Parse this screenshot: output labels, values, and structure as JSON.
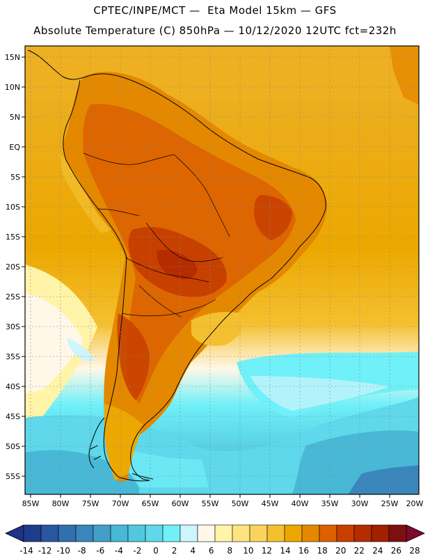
{
  "header": {
    "line1": "CPTEC/INPE/MCT —  Eta Model 15km — GFS",
    "line2": "Absolute Temperature (C) 850hPa — 10/12/2020 12UTC fct=232h"
  },
  "map": {
    "lat_labels": [
      "15N",
      "10N",
      "5N",
      "EQ",
      "5S",
      "10S",
      "15S",
      "20S",
      "25S",
      "30S",
      "35S",
      "40S",
      "45S",
      "50S",
      "55S"
    ],
    "lon_labels": [
      "85W",
      "80W",
      "75W",
      "70W",
      "65W",
      "60W",
      "55W",
      "50W",
      "45W",
      "40W",
      "35W",
      "30W",
      "25W",
      "20W"
    ]
  },
  "colorbar": {
    "labels": [
      "-14",
      "-12",
      "-10",
      "-8",
      "-6",
      "-4",
      "-2",
      "0",
      "2",
      "4",
      "6",
      "8",
      "10",
      "12",
      "14",
      "16",
      "18",
      "20",
      "22",
      "24",
      "26",
      "28"
    ],
    "colors": [
      "#1f3c8c",
      "#2a56a0",
      "#3170b0",
      "#3a86bc",
      "#42a0c8",
      "#48b8d6",
      "#52c8e0",
      "#5ed8ea",
      "#70f0f8",
      "#cef4fc",
      "#fff8e8",
      "#fff4a8",
      "#fce480",
      "#f8d45c",
      "#f4c030",
      "#eca800",
      "#e48800",
      "#dc6000",
      "#c84000",
      "#b42c00",
      "#a02000",
      "#7c1010"
    ],
    "under_color": "#1e3288",
    "over_color": "#7c0a2a"
  }
}
